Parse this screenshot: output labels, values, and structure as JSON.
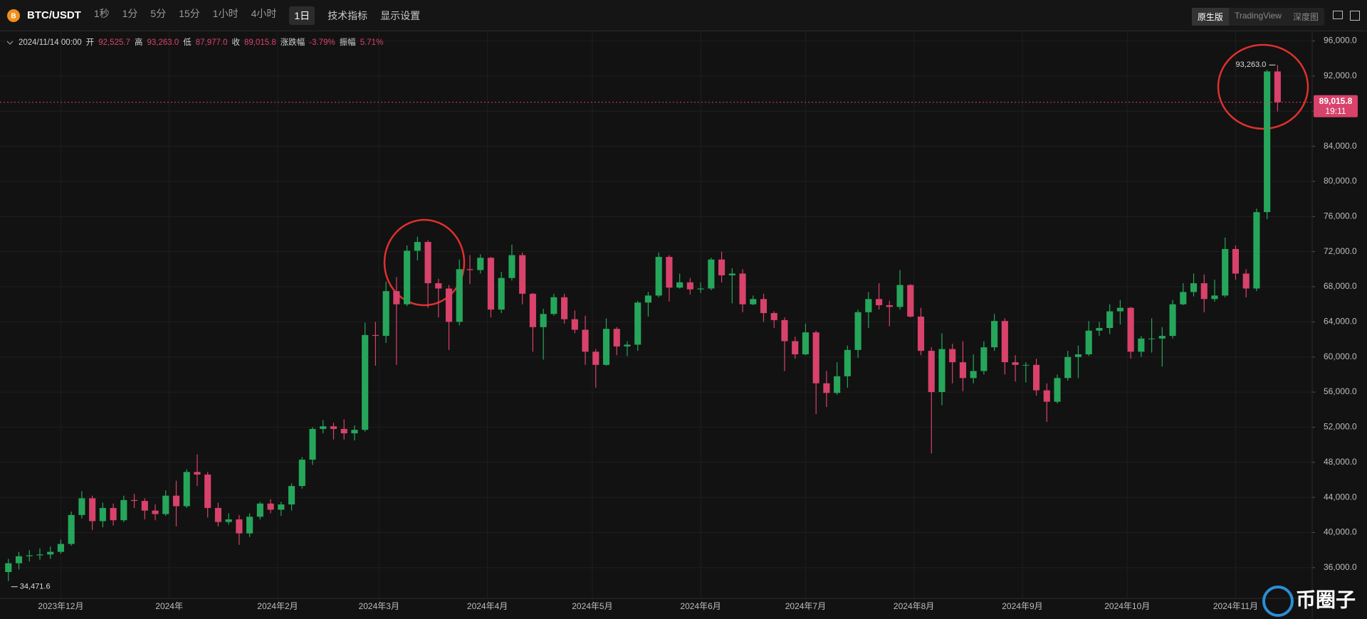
{
  "header": {
    "symbol": "BTC/USDT",
    "intervals": [
      "1秒",
      "1分",
      "5分",
      "15分",
      "1小时",
      "4小时",
      "1日"
    ],
    "active_interval": 6,
    "tools": [
      "技术指标",
      "显示设置"
    ],
    "views": [
      "原生版",
      "TradingView",
      "深度图"
    ],
    "active_view": 0
  },
  "chart_data": {
    "type": "candlestick",
    "legend": {
      "date": "2024/11/14 00:00",
      "fields": [
        {
          "label": "开",
          "value": "92,525.7"
        },
        {
          "label": "高",
          "value": "93,263.0"
        },
        {
          "label": "低",
          "value": "87,977.0"
        },
        {
          "label": "收",
          "value": "89,015.8"
        },
        {
          "label": "涨跌幅",
          "value": "-3.79%"
        },
        {
          "label": "振幅",
          "value": "5.71%"
        }
      ]
    },
    "up_color": "#26a65b",
    "down_color": "#d8426b",
    "grid": true,
    "xlim": [
      -0.8,
      124.3
    ],
    "ylim": [
      32500,
      97100
    ],
    "xticks": [
      {
        "value": 5,
        "label": "2023年12月"
      },
      {
        "value": 15.33,
        "label": "2024年"
      },
      {
        "value": 25.67,
        "label": "2024年2月"
      },
      {
        "value": 35.33,
        "label": "2024年3月"
      },
      {
        "value": 45.67,
        "label": "2024年4月"
      },
      {
        "value": 55.67,
        "label": "2024年5月"
      },
      {
        "value": 66,
        "label": "2024年6月"
      },
      {
        "value": 76,
        "label": "2024年7月"
      },
      {
        "value": 86.33,
        "label": "2024年8月"
      },
      {
        "value": 96.67,
        "label": "2024年9月"
      },
      {
        "value": 106.67,
        "label": "2024年10月"
      },
      {
        "value": 117,
        "label": "2024年11月"
      }
    ],
    "yticks": [
      {
        "value": 36000,
        "label": "36,000.0"
      },
      {
        "value": 40000,
        "label": "40,000.0"
      },
      {
        "value": 44000,
        "label": "44,000.0"
      },
      {
        "value": 48000,
        "label": "48,000.0"
      },
      {
        "value": 52000,
        "label": "52,000.0"
      },
      {
        "value": 56000,
        "label": "56,000.0"
      },
      {
        "value": 60000,
        "label": "60,000.0"
      },
      {
        "value": 64000,
        "label": "64,000.0"
      },
      {
        "value": 68000,
        "label": "68,000.0"
      },
      {
        "value": 72000,
        "label": "72,000.0"
      },
      {
        "value": 76000,
        "label": "76,000.0"
      },
      {
        "value": 80000,
        "label": "80,000.0"
      },
      {
        "value": 84000,
        "label": "84,000.0"
      },
      {
        "value": 88000,
        "label": "88,000.0"
      },
      {
        "value": 92000,
        "label": "92,000.0"
      },
      {
        "value": 96000,
        "label": "96,000.0"
      }
    ],
    "last_price": {
      "value": 89015.8,
      "label": "89,015.8",
      "countdown": "19:11"
    },
    "max_label": "93,263.0",
    "min_label": "34,471.6",
    "candles": [
      [
        35500,
        37000,
        34471.6,
        36500
      ],
      [
        36500,
        37800,
        35800,
        37300
      ],
      [
        37300,
        38000,
        36700,
        37400
      ],
      [
        37400,
        38200,
        36900,
        37500
      ],
      [
        37500,
        38400,
        37000,
        37800
      ],
      [
        37800,
        39200,
        37600,
        38700
      ],
      [
        38700,
        42400,
        38500,
        42000
      ],
      [
        42000,
        44700,
        41600,
        43900
      ],
      [
        43900,
        44200,
        40300,
        41300
      ],
      [
        41300,
        43400,
        40600,
        42800
      ],
      [
        42800,
        43300,
        40800,
        41400
      ],
      [
        41400,
        44200,
        41200,
        43700
      ],
      [
        43700,
        44400,
        42800,
        43600
      ],
      [
        43600,
        43900,
        41500,
        42500
      ],
      [
        42500,
        43200,
        41400,
        42100
      ],
      [
        42100,
        44800,
        41900,
        44200
      ],
      [
        44200,
        45900,
        40700,
        43000
      ],
      [
        43000,
        47200,
        42800,
        46900
      ],
      [
        46900,
        48900,
        45300,
        46600
      ],
      [
        46600,
        46900,
        41700,
        42800
      ],
      [
        42800,
        43400,
        40700,
        41200
      ],
      [
        41200,
        42200,
        40900,
        41500
      ],
      [
        41500,
        42000,
        38600,
        39900
      ],
      [
        39900,
        42200,
        39500,
        41800
      ],
      [
        41800,
        43500,
        41500,
        43300
      ],
      [
        43300,
        43800,
        42200,
        42600
      ],
      [
        42600,
        43500,
        41900,
        43200
      ],
      [
        43200,
        45600,
        42500,
        45300
      ],
      [
        45300,
        48600,
        45000,
        48300
      ],
      [
        48300,
        52000,
        47700,
        51800
      ],
      [
        51800,
        52800,
        51300,
        52100
      ],
      [
        52100,
        52500,
        50600,
        51800
      ],
      [
        51800,
        52900,
        50600,
        51300
      ],
      [
        51300,
        52200,
        50500,
        51700
      ],
      [
        51700,
        63900,
        51500,
        62500
      ],
      [
        62500,
        64000,
        59000,
        62400
      ],
      [
        62400,
        68600,
        61600,
        67500
      ],
      [
        67500,
        69100,
        59100,
        66000
      ],
      [
        66000,
        72700,
        65800,
        72100
      ],
      [
        72100,
        73700,
        71000,
        73100
      ],
      [
        73100,
        73300,
        65600,
        68400
      ],
      [
        68400,
        68900,
        64500,
        67800
      ],
      [
        67800,
        68200,
        60800,
        64000
      ],
      [
        64000,
        71100,
        63600,
        70000
      ],
      [
        70000,
        71600,
        68300,
        69900
      ],
      [
        69900,
        71700,
        69500,
        71300
      ],
      [
        71300,
        71400,
        64500,
        65400
      ],
      [
        65400,
        69700,
        65000,
        69000
      ],
      [
        69000,
        72800,
        68700,
        71600
      ],
      [
        71600,
        71900,
        66000,
        67200
      ],
      [
        67200,
        67300,
        60600,
        63400
      ],
      [
        63400,
        65500,
        59700,
        64900
      ],
      [
        64900,
        67200,
        64700,
        66800
      ],
      [
        66800,
        67200,
        63800,
        64300
      ],
      [
        64300,
        65300,
        62700,
        63100
      ],
      [
        63100,
        64700,
        59100,
        60600
      ],
      [
        60600,
        60900,
        56500,
        59100
      ],
      [
        59100,
        64400,
        59000,
        63200
      ],
      [
        63200,
        63400,
        60200,
        61200
      ],
      [
        61200,
        61800,
        60100,
        61400
      ],
      [
        61400,
        66400,
        60700,
        66200
      ],
      [
        66200,
        67400,
        64600,
        67000
      ],
      [
        67000,
        71900,
        66800,
        71400
      ],
      [
        71400,
        71600,
        66300,
        67900
      ],
      [
        67900,
        69500,
        67800,
        68500
      ],
      [
        68500,
        69000,
        67100,
        67700
      ],
      [
        67700,
        68500,
        67300,
        67800
      ],
      [
        67800,
        71300,
        67600,
        71100
      ],
      [
        71100,
        72000,
        68500,
        69300
      ],
      [
        69300,
        70100,
        66100,
        69500
      ],
      [
        69500,
        70000,
        65100,
        66000
      ],
      [
        66000,
        67000,
        65900,
        66600
      ],
      [
        66600,
        67200,
        64000,
        65000
      ],
      [
        65000,
        65200,
        63300,
        64200
      ],
      [
        64200,
        64500,
        58400,
        61800
      ],
      [
        61800,
        62300,
        59800,
        60300
      ],
      [
        60300,
        63800,
        60200,
        62800
      ],
      [
        62800,
        63000,
        53500,
        57000
      ],
      [
        57000,
        58400,
        54300,
        55900
      ],
      [
        55900,
        59400,
        55700,
        57800
      ],
      [
        57800,
        61300,
        56500,
        60800
      ],
      [
        60800,
        65400,
        59900,
        65100
      ],
      [
        65100,
        67400,
        63300,
        66600
      ],
      [
        66600,
        68400,
        65400,
        65900
      ],
      [
        65900,
        66400,
        63500,
        65700
      ],
      [
        65700,
        69900,
        65400,
        68200
      ],
      [
        68200,
        68300,
        64500,
        64600
      ],
      [
        64600,
        65600,
        60200,
        60700
      ],
      [
        60700,
        61100,
        49000,
        56000
      ],
      [
        56000,
        62700,
        54500,
        60900
      ],
      [
        60900,
        61500,
        57000,
        59400
      ],
      [
        59400,
        61800,
        56100,
        57600
      ],
      [
        57600,
        60300,
        57000,
        58400
      ],
      [
        58400,
        61800,
        58000,
        61100
      ],
      [
        61100,
        64900,
        60700,
        64100
      ],
      [
        64100,
        64400,
        58000,
        59400
      ],
      [
        59400,
        60200,
        57200,
        59100
      ],
      [
        59100,
        59400,
        57100,
        59100
      ],
      [
        59100,
        59800,
        55600,
        56200
      ],
      [
        56200,
        57000,
        52600,
        54900
      ],
      [
        54900,
        58000,
        54700,
        57600
      ],
      [
        57600,
        60700,
        57300,
        60000
      ],
      [
        60000,
        61300,
        57600,
        60300
      ],
      [
        60300,
        64100,
        60100,
        63000
      ],
      [
        63000,
        64000,
        62400,
        63300
      ],
      [
        63300,
        66000,
        62600,
        65200
      ],
      [
        65200,
        66500,
        63700,
        65600
      ],
      [
        65600,
        65700,
        59800,
        60600
      ],
      [
        60600,
        62400,
        60000,
        62100
      ],
      [
        62100,
        64400,
        60500,
        62100
      ],
      [
        62100,
        63400,
        58900,
        62400
      ],
      [
        62400,
        66500,
        62100,
        66000
      ],
      [
        66000,
        68400,
        65900,
        67400
      ],
      [
        67400,
        69500,
        66900,
        68400
      ],
      [
        68400,
        69400,
        65100,
        66600
      ],
      [
        66600,
        68800,
        66300,
        67000
      ],
      [
        67000,
        73600,
        66800,
        72300
      ],
      [
        72300,
        72700,
        68800,
        69500
      ],
      [
        69500,
        70000,
        66800,
        67800
      ],
      [
        67800,
        76900,
        67500,
        76500
      ],
      [
        76500,
        92700,
        75700,
        92525.7
      ],
      [
        92525.7,
        93263,
        87977,
        89015.8
      ]
    ]
  },
  "watermark": "币圈子"
}
